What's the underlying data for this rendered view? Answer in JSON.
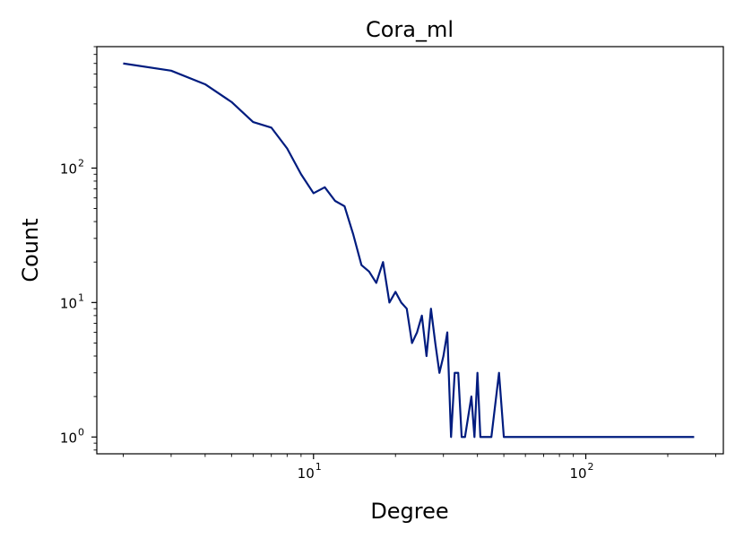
{
  "chart_data": {
    "type": "line",
    "title": "Cora_ml",
    "xlabel": "Degree",
    "ylabel": "Count",
    "xscale": "log",
    "yscale": "log",
    "xlim": [
      1.6,
      320
    ],
    "ylim": [
      0.75,
      800
    ],
    "grid": false,
    "line_color": "#001c7f",
    "xticks": [
      {
        "value": 10,
        "base": "10",
        "exp": "1"
      },
      {
        "value": 100,
        "base": "10",
        "exp": "2"
      }
    ],
    "yticks": [
      {
        "value": 1,
        "base": "10",
        "exp": "0"
      },
      {
        "value": 10,
        "base": "10",
        "exp": "1"
      },
      {
        "value": 100,
        "base": "10",
        "exp": "2"
      }
    ],
    "series": [
      {
        "x": [
          2,
          3,
          4,
          5,
          6,
          7,
          8,
          9,
          10,
          11,
          12,
          13,
          14,
          15,
          16,
          17,
          18,
          19,
          20,
          21,
          22,
          23,
          24,
          25,
          26,
          27,
          28,
          29,
          30,
          31,
          32,
          33,
          34,
          35,
          36,
          38,
          39,
          40,
          41,
          45,
          48,
          50,
          250
        ],
        "y": [
          600,
          530,
          420,
          310,
          220,
          200,
          140,
          90,
          65,
          72,
          57,
          52,
          32,
          19,
          17,
          14,
          20,
          10,
          12,
          10,
          9,
          5,
          6,
          8,
          4,
          9,
          5,
          3,
          4,
          6,
          1,
          3,
          3,
          1,
          1,
          2,
          1,
          3,
          1,
          1,
          3,
          1,
          1
        ]
      }
    ]
  }
}
